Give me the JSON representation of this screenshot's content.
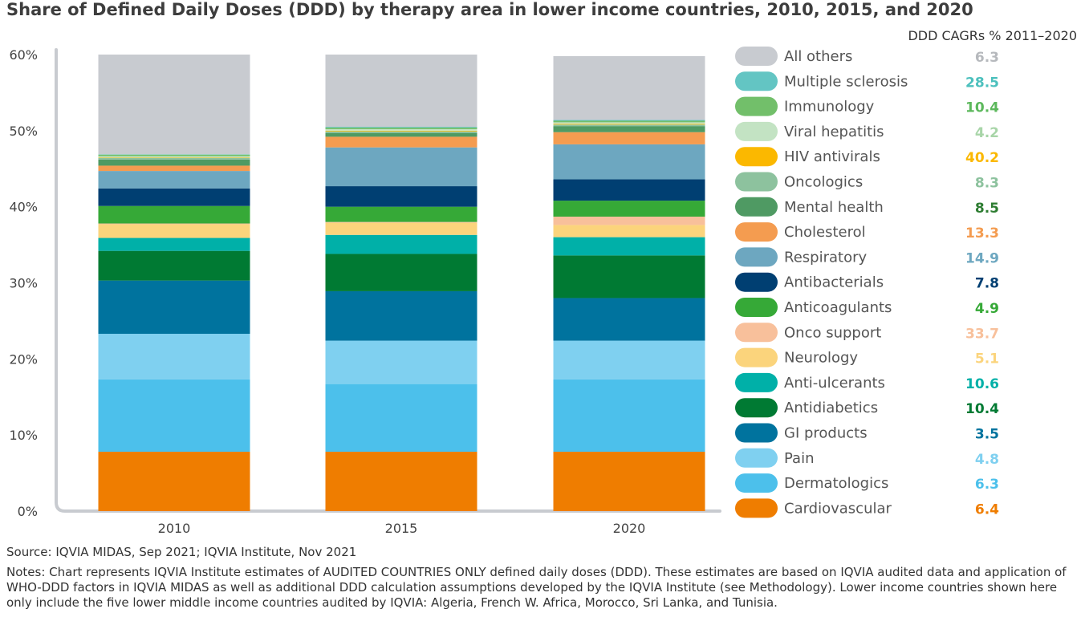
{
  "chart_data": {
    "type": "bar",
    "stacked": true,
    "title": "Share of Defined Daily Doses (DDD) by therapy area in lower income countries, 2010, 2015, and 2020",
    "cagr_header": "DDD CAGRs % 2011–2020",
    "categories": [
      "2010",
      "2015",
      "2020"
    ],
    "ylim": [
      0,
      60
    ],
    "yticks": [
      "0%",
      "10%",
      "20%",
      "30%",
      "40%",
      "50%",
      "60%"
    ],
    "xlabel": "",
    "ylabel": "",
    "series": [
      {
        "name": "Cardiovascular",
        "cagr": "6.4",
        "color": "#ef7d00",
        "cagr_color": "#ef7d00",
        "values": [
          7.8,
          7.8,
          7.8
        ]
      },
      {
        "name": "Dermatologics",
        "cagr": "6.3",
        "color": "#4cc0eb",
        "cagr_color": "#4cc0eb",
        "values": [
          9.5,
          8.9,
          9.5
        ]
      },
      {
        "name": "Pain",
        "cagr": "4.8",
        "color": "#7fd0f0",
        "cagr_color": "#7fd0f0",
        "values": [
          6.0,
          5.7,
          5.1
        ]
      },
      {
        "name": "GI products",
        "cagr": "3.5",
        "color": "#00739e",
        "cagr_color": "#00739e",
        "values": [
          7.0,
          6.5,
          5.6
        ]
      },
      {
        "name": "Antidiabetics",
        "cagr": "10.4",
        "color": "#007a33",
        "cagr_color": "#007a33",
        "values": [
          3.9,
          4.9,
          5.6
        ]
      },
      {
        "name": "Anti-ulcerants",
        "cagr": "10.6",
        "color": "#00b0a8",
        "cagr_color": "#00b0a8",
        "values": [
          1.7,
          2.5,
          2.4
        ]
      },
      {
        "name": "Neurology",
        "cagr": "5.1",
        "color": "#fbd47c",
        "cagr_color": "#fbd47c",
        "values": [
          1.8,
          1.6,
          1.6
        ]
      },
      {
        "name": "Onco support",
        "cagr": "33.7",
        "color": "#f8c09b",
        "cagr_color": "#f8c09b",
        "values": [
          0.1,
          0.1,
          1.1
        ]
      },
      {
        "name": "Anticoagulants",
        "cagr": "4.9",
        "color": "#36a937",
        "cagr_color": "#36a937",
        "values": [
          2.3,
          2.0,
          2.1
        ]
      },
      {
        "name": "Antibacterials",
        "cagr": "7.8",
        "color": "#003f72",
        "cagr_color": "#003f72",
        "values": [
          2.3,
          2.7,
          2.8
        ]
      },
      {
        "name": "Respiratory",
        "cagr": "14.9",
        "color": "#6da7c0",
        "cagr_color": "#6da7c0",
        "values": [
          2.3,
          5.1,
          4.6
        ]
      },
      {
        "name": "Cholesterol",
        "cagr": "13.3",
        "color": "#f49c50",
        "cagr_color": "#f49c50",
        "values": [
          0.7,
          1.4,
          1.6
        ]
      },
      {
        "name": "Mental health",
        "cagr": "8.5",
        "color": "#4f9a63",
        "cagr_color": "#2e7d32",
        "values": [
          0.8,
          0.5,
          0.8
        ]
      },
      {
        "name": "Oncologics",
        "cagr": "8.3",
        "color": "#8dc29e",
        "cagr_color": "#8dc29e",
        "values": [
          0.2,
          0.2,
          0.2
        ]
      },
      {
        "name": "HIV antivirals",
        "cagr": "40.2",
        "color": "#fbb800",
        "cagr_color": "#fbb800",
        "values": [
          0.05,
          0.1,
          0.1
        ]
      },
      {
        "name": "Viral hepatitis",
        "cagr": "4.2",
        "color": "#c3e3c3",
        "cagr_color": "#a8d5a8",
        "values": [
          0.2,
          0.2,
          0.2
        ]
      },
      {
        "name": "Immunology",
        "cagr": "10.4",
        "color": "#72bf6a",
        "cagr_color": "#5cb85c",
        "values": [
          0.2,
          0.2,
          0.2
        ]
      },
      {
        "name": "Multiple sclerosis",
        "cagr": "28.5",
        "color": "#63c5c3",
        "cagr_color": "#4cc0bd",
        "values": [
          0.05,
          0.1,
          0.1
        ]
      },
      {
        "name": "All others",
        "cagr": "6.3",
        "color": "#c8cbd0",
        "cagr_color": "#b6b9bd",
        "values": [
          13.1,
          9.5,
          8.4
        ]
      }
    ]
  },
  "footer": {
    "source": "Source: IQVIA MIDAS, Sep 2021; IQVIA Institute, Nov 2021",
    "notes": "Notes: Chart represents IQVIA Institute estimates of AUDITED COUNTRIES ONLY defined daily doses (DDD). These estimates are based on IQVIA audited data and application of WHO-DDD factors in IQVIA MIDAS as well as additional DDD calculation assumptions developed by the IQVIA Institute (see Methodology). Lower income countries shown here only include the five lower middle income countries audited by IQVIA: Algeria, French W. Africa, Morocco, Sri Lanka, and Tunisia."
  }
}
